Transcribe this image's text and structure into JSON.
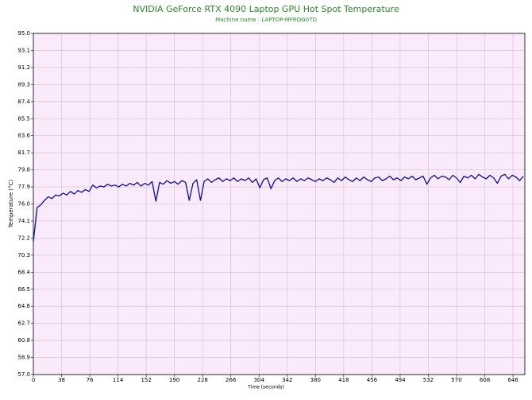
{
  "chart_data": {
    "type": "line",
    "title": "NVIDIA GeForce RTX 4090 Laptop GPU Hot Spot Temperature",
    "subtitle": "Machine name : LAPTOP-MFROG07D",
    "x_label": "Time (seconds)",
    "y_label": "Temperature (°C)",
    "x": [
      0,
      5,
      10,
      15,
      20,
      25,
      30,
      35,
      40,
      45,
      50,
      55,
      60,
      65,
      70,
      75,
      80,
      85,
      90,
      95,
      100,
      105,
      110,
      115,
      120,
      125,
      130,
      135,
      140,
      145,
      150,
      155,
      160,
      165,
      170,
      175,
      180,
      185,
      190,
      195,
      200,
      205,
      210,
      215,
      220,
      225,
      230,
      235,
      240,
      245,
      250,
      255,
      260,
      265,
      270,
      275,
      280,
      285,
      290,
      295,
      300,
      305,
      310,
      315,
      320,
      325,
      330,
      335,
      340,
      345,
      350,
      355,
      360,
      365,
      370,
      375,
      380,
      385,
      390,
      395,
      400,
      405,
      410,
      415,
      420,
      425,
      430,
      435,
      440,
      445,
      450,
      455,
      460,
      465,
      470,
      475,
      480,
      485,
      490,
      495,
      500,
      505,
      510,
      515,
      520,
      525,
      530,
      535,
      540,
      545,
      550,
      555,
      560,
      565,
      570,
      575,
      580,
      585,
      590,
      595,
      600,
      605,
      610,
      615,
      620,
      625,
      630,
      635,
      640,
      645,
      650,
      655,
      660
    ],
    "series": [
      {
        "name": "GPU Hot Spot Temperature",
        "color": "#0c0ca8",
        "values": [
          71.8,
          75.6,
          75.9,
          76.4,
          76.8,
          76.6,
          77.0,
          76.9,
          77.2,
          77.0,
          77.4,
          77.1,
          77.5,
          77.3,
          77.6,
          77.4,
          78.1,
          77.8,
          78.0,
          77.9,
          78.2,
          78.0,
          78.1,
          77.9,
          78.2,
          78.0,
          78.3,
          78.1,
          78.4,
          78.0,
          78.3,
          78.1,
          78.5,
          76.3,
          78.4,
          78.2,
          78.6,
          78.3,
          78.5,
          78.2,
          78.6,
          78.4,
          76.4,
          78.3,
          78.7,
          76.4,
          78.5,
          78.8,
          78.4,
          78.7,
          78.9,
          78.5,
          78.8,
          78.6,
          78.9,
          78.5,
          78.8,
          78.6,
          78.9,
          78.4,
          78.8,
          77.8,
          78.7,
          78.9,
          77.7,
          78.6,
          78.9,
          78.5,
          78.8,
          78.6,
          78.9,
          78.5,
          78.8,
          78.6,
          78.9,
          78.7,
          78.5,
          78.8,
          78.6,
          78.9,
          78.7,
          78.4,
          78.9,
          78.6,
          79.0,
          78.7,
          78.5,
          78.9,
          78.6,
          79.0,
          78.7,
          78.5,
          78.9,
          79.0,
          78.6,
          78.8,
          79.1,
          78.7,
          78.9,
          78.6,
          79.0,
          78.8,
          79.1,
          78.7,
          78.9,
          79.1,
          78.2,
          78.9,
          79.2,
          78.8,
          79.1,
          79.0,
          78.7,
          79.2,
          78.9,
          78.4,
          79.1,
          78.9,
          79.2,
          78.8,
          79.3,
          79.0,
          78.8,
          79.2,
          78.9,
          78.3,
          79.1,
          79.3,
          78.8,
          79.2,
          79.0,
          78.6,
          79.1
        ]
      }
    ],
    "xlim": [
      0,
      662
    ],
    "ylim": [
      57,
      95
    ],
    "xticks": [
      0,
      38,
      76,
      114,
      152,
      190,
      228,
      266,
      304,
      342,
      380,
      418,
      456,
      494,
      532,
      570,
      608,
      646
    ],
    "yticks": [
      {
        "value": 95,
        "label": "95.0"
      },
      93.1,
      91.2,
      89.3,
      87.4,
      85.5,
      83.6,
      81.7,
      79.8,
      77.9,
      {
        "value": 76,
        "label": "76.0"
      },
      74.1,
      72.2,
      70.3,
      68.4,
      66.5,
      64.6,
      62.7,
      60.8,
      58.9,
      {
        "value": 57,
        "label": "57.0"
      }
    ],
    "grid": true,
    "background": "#fbeafb"
  }
}
